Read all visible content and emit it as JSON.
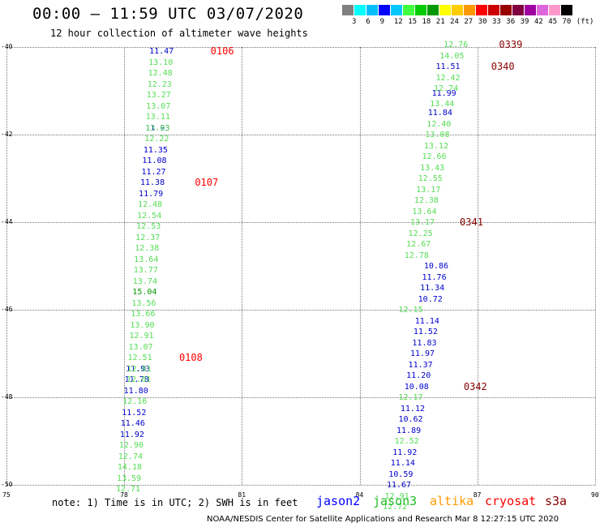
{
  "header": {
    "title": "00:00 — 11:59 UTC 03/07/2020",
    "subtitle": "12 hour collection of altimeter wave heights"
  },
  "legend": {
    "colors": [
      "#808080",
      "#00ffff",
      "#00bfff",
      "#0000ff",
      "#00c8ff",
      "#40ff40",
      "#00cc00",
      "#009900",
      "#ffff00",
      "#ffcc00",
      "#ff9900",
      "#ff0000",
      "#cc0000",
      "#990000",
      "#800040",
      "#a000a0",
      "#dd66dd",
      "#ff99cc",
      "#000000"
    ],
    "labels": [
      "3",
      "6",
      "9",
      "12",
      "15",
      "18",
      "21",
      "24",
      "27",
      "30",
      "33",
      "36",
      "39",
      "42",
      "45",
      "70",
      "(ft)"
    ]
  },
  "chart_data": {
    "type": "scatter",
    "description_free": true,
    "xlim": [
      75,
      90
    ],
    "ylim": [
      -50,
      -40
    ],
    "x_ticks": [
      "75",
      "78",
      "81",
      "84",
      "87",
      "90"
    ],
    "y_ticks": [
      "-40",
      "-42",
      "-44",
      "-46",
      "-48",
      "-50"
    ],
    "series": [
      {
        "name": "jason2",
        "points": [
          {
            "lon": 78.95,
            "lat": -40.1,
            "v": "11.47",
            "c": "#0000cc"
          },
          {
            "lon": 78.85,
            "lat": -41.85,
            "v": "11.93",
            "c": "#0000cc"
          },
          {
            "lon": 78.8,
            "lat": -42.35,
            "v": "11.35",
            "c": "#0000cc"
          },
          {
            "lon": 78.77,
            "lat": -42.6,
            "v": "11.08",
            "c": "#0000cc"
          },
          {
            "lon": 78.75,
            "lat": -42.85,
            "v": "11.27",
            "c": "#0000cc"
          },
          {
            "lon": 78.72,
            "lat": -43.1,
            "v": "11.38",
            "c": "#0000cc"
          },
          {
            "lon": 78.68,
            "lat": -43.35,
            "v": "11.79",
            "c": "#0000cc"
          },
          {
            "lon": 78.35,
            "lat": -47.35,
            "v": "11.93",
            "c": "#0000cc"
          },
          {
            "lon": 78.32,
            "lat": -47.6,
            "v": "11.78",
            "c": "#0000cc"
          },
          {
            "lon": 78.3,
            "lat": -47.85,
            "v": "11.80",
            "c": "#0000cc"
          },
          {
            "lon": 78.25,
            "lat": -48.35,
            "v": "11.52",
            "c": "#0000cc"
          },
          {
            "lon": 78.22,
            "lat": -48.6,
            "v": "11.46",
            "c": "#0000cc"
          },
          {
            "lon": 78.2,
            "lat": -48.85,
            "v": "11.92",
            "c": "#0000cc"
          },
          {
            "lon": 86.25,
            "lat": -40.45,
            "v": "11.51",
            "c": "#0000cc"
          },
          {
            "lon": 86.15,
            "lat": -41.05,
            "v": "11.99",
            "c": "#0000cc"
          },
          {
            "lon": 86.05,
            "lat": -41.5,
            "v": "11.84",
            "c": "#0000cc"
          },
          {
            "lon": 85.95,
            "lat": -45.0,
            "v": "10.86",
            "c": "#0000cc"
          },
          {
            "lon": 85.9,
            "lat": -45.25,
            "v": "11.76",
            "c": "#0000cc"
          },
          {
            "lon": 85.85,
            "lat": -45.5,
            "v": "11.34",
            "c": "#0000cc"
          },
          {
            "lon": 85.8,
            "lat": -45.75,
            "v": "10.72",
            "c": "#0000cc"
          },
          {
            "lon": 85.72,
            "lat": -46.25,
            "v": "11.14",
            "c": "#0000cc"
          },
          {
            "lon": 85.68,
            "lat": -46.5,
            "v": "11.52",
            "c": "#0000cc"
          },
          {
            "lon": 85.65,
            "lat": -46.75,
            "v": "11.83",
            "c": "#0000cc"
          },
          {
            "lon": 85.6,
            "lat": -47.0,
            "v": "11.97",
            "c": "#0000cc"
          },
          {
            "lon": 85.55,
            "lat": -47.25,
            "v": "11.37",
            "c": "#0000cc"
          },
          {
            "lon": 85.5,
            "lat": -47.5,
            "v": "11.20",
            "c": "#0000cc"
          },
          {
            "lon": 85.45,
            "lat": -47.75,
            "v": "10.08",
            "c": "#0000cc"
          },
          {
            "lon": 85.35,
            "lat": -48.25,
            "v": "11.12",
            "c": "#0000cc"
          },
          {
            "lon": 85.3,
            "lat": -48.5,
            "v": "10.62",
            "c": "#0000cc"
          },
          {
            "lon": 85.25,
            "lat": -48.75,
            "v": "11.89",
            "c": "#0000cc"
          },
          {
            "lon": 85.15,
            "lat": -49.25,
            "v": "11.92",
            "c": "#0000cc"
          },
          {
            "lon": 85.1,
            "lat": -49.5,
            "v": "11.14",
            "c": "#0000cc"
          },
          {
            "lon": 85.05,
            "lat": -49.75,
            "v": "10.59",
            "c": "#0000cc"
          },
          {
            "lon": 85.0,
            "lat": -50.0,
            "v": "11.67",
            "c": "#0000cc"
          }
        ]
      },
      {
        "name": "jason3",
        "points": [
          {
            "lon": 78.93,
            "lat": -40.35,
            "v": "13.10",
            "c": "#55dd55"
          },
          {
            "lon": 78.92,
            "lat": -40.6,
            "v": "12.48",
            "c": "#55dd55"
          },
          {
            "lon": 78.9,
            "lat": -40.85,
            "v": "12.23",
            "c": "#55dd55"
          },
          {
            "lon": 78.88,
            "lat": -41.1,
            "v": "13.27",
            "c": "#55dd55"
          },
          {
            "lon": 78.87,
            "lat": -41.35,
            "v": "13.07",
            "c": "#55dd55"
          },
          {
            "lon": 78.86,
            "lat": -41.6,
            "v": "13.11",
            "c": "#55dd55"
          },
          {
            "lon": 78.85,
            "lat": -41.85,
            "v": "13.03",
            "c": "#55dd55"
          },
          {
            "lon": 78.83,
            "lat": -42.1,
            "v": "12.22",
            "c": "#55dd55"
          },
          {
            "lon": 78.66,
            "lat": -43.6,
            "v": "12.48",
            "c": "#55dd55"
          },
          {
            "lon": 78.64,
            "lat": -43.85,
            "v": "12.54",
            "c": "#55dd55"
          },
          {
            "lon": 78.62,
            "lat": -44.1,
            "v": "12.53",
            "c": "#55dd55"
          },
          {
            "lon": 78.6,
            "lat": -44.35,
            "v": "12.37",
            "c": "#55dd55"
          },
          {
            "lon": 78.58,
            "lat": -44.6,
            "v": "12.38",
            "c": "#55dd55"
          },
          {
            "lon": 78.56,
            "lat": -44.85,
            "v": "13.64",
            "c": "#55dd55"
          },
          {
            "lon": 78.55,
            "lat": -45.1,
            "v": "13.77",
            "c": "#55dd55"
          },
          {
            "lon": 78.53,
            "lat": -45.35,
            "v": "13.74",
            "c": "#55dd55"
          },
          {
            "lon": 78.52,
            "lat": -45.6,
            "v": "15.04",
            "c": "#009900"
          },
          {
            "lon": 78.5,
            "lat": -45.85,
            "v": "13.56",
            "c": "#55dd55"
          },
          {
            "lon": 78.48,
            "lat": -46.1,
            "v": "13.66",
            "c": "#55dd55"
          },
          {
            "lon": 78.46,
            "lat": -46.35,
            "v": "13.90",
            "c": "#55dd55"
          },
          {
            "lon": 78.44,
            "lat": -46.6,
            "v": "12.91",
            "c": "#55dd55"
          },
          {
            "lon": 78.42,
            "lat": -46.85,
            "v": "13.07",
            "c": "#55dd55"
          },
          {
            "lon": 78.4,
            "lat": -47.1,
            "v": "12.51",
            "c": "#55dd55"
          },
          {
            "lon": 78.38,
            "lat": -47.35,
            "v": "12.01",
            "c": "#55dd55"
          },
          {
            "lon": 78.37,
            "lat": -47.6,
            "v": "12.01",
            "c": "#55dd55"
          },
          {
            "lon": 78.27,
            "lat": -48.1,
            "v": "12.16",
            "c": "#55dd55"
          },
          {
            "lon": 78.18,
            "lat": -49.1,
            "v": "12.90",
            "c": "#55dd55"
          },
          {
            "lon": 78.16,
            "lat": -49.35,
            "v": "12.74",
            "c": "#55dd55"
          },
          {
            "lon": 78.14,
            "lat": -49.6,
            "v": "14.18",
            "c": "#55dd55"
          },
          {
            "lon": 78.12,
            "lat": -49.85,
            "v": "13.59",
            "c": "#55dd55"
          },
          {
            "lon": 78.1,
            "lat": -50.1,
            "v": "12.71",
            "c": "#55dd55"
          },
          {
            "lon": 86.45,
            "lat": -39.95,
            "v": "12.76",
            "c": "#55dd55"
          },
          {
            "lon": 86.35,
            "lat": -40.2,
            "v": "14.05",
            "c": "#55dd55"
          },
          {
            "lon": 86.25,
            "lat": -40.7,
            "v": "12.42",
            "c": "#55dd55"
          },
          {
            "lon": 86.2,
            "lat": -40.95,
            "v": "12.74",
            "c": "#55dd55"
          },
          {
            "lon": 86.1,
            "lat": -41.3,
            "v": "13.44",
            "c": "#55dd55"
          },
          {
            "lon": 86.02,
            "lat": -41.75,
            "v": "12.40",
            "c": "#55dd55"
          },
          {
            "lon": 85.98,
            "lat": -42.0,
            "v": "13.08",
            "c": "#55dd55"
          },
          {
            "lon": 85.95,
            "lat": -42.25,
            "v": "13.12",
            "c": "#55dd55"
          },
          {
            "lon": 85.9,
            "lat": -42.5,
            "v": "12.66",
            "c": "#55dd55"
          },
          {
            "lon": 85.85,
            "lat": -42.75,
            "v": "13.43",
            "c": "#55dd55"
          },
          {
            "lon": 85.8,
            "lat": -43.0,
            "v": "12.55",
            "c": "#55dd55"
          },
          {
            "lon": 85.75,
            "lat": -43.25,
            "v": "13.17",
            "c": "#55dd55"
          },
          {
            "lon": 85.7,
            "lat": -43.5,
            "v": "12.38",
            "c": "#55dd55"
          },
          {
            "lon": 85.65,
            "lat": -43.75,
            "v": "13.64",
            "c": "#55dd55"
          },
          {
            "lon": 85.6,
            "lat": -44.0,
            "v": "13.17",
            "c": "#55dd55"
          },
          {
            "lon": 85.55,
            "lat": -44.25,
            "v": "12.25",
            "c": "#55dd55"
          },
          {
            "lon": 85.5,
            "lat": -44.5,
            "v": "12.67",
            "c": "#55dd55"
          },
          {
            "lon": 85.45,
            "lat": -44.75,
            "v": "12.78",
            "c": "#55dd55"
          },
          {
            "lon": 85.3,
            "lat": -46.0,
            "v": "12.15",
            "c": "#55dd55"
          },
          {
            "lon": 85.3,
            "lat": -48.0,
            "v": "12.17",
            "c": "#55dd55"
          },
          {
            "lon": 85.2,
            "lat": -49.0,
            "v": "12.52",
            "c": "#55dd55"
          },
          {
            "lon": 84.95,
            "lat": -50.25,
            "v": "12.91",
            "c": "#55dd55"
          },
          {
            "lon": 84.9,
            "lat": -50.5,
            "v": "12.72",
            "c": "#55dd55"
          }
        ]
      }
    ],
    "time_labels": [
      {
        "lon": 80.2,
        "lat": -40.1,
        "t": "0106",
        "c": "#ff0000"
      },
      {
        "lon": 79.8,
        "lat": -43.1,
        "t": "0107",
        "c": "#ff0000"
      },
      {
        "lon": 79.4,
        "lat": -47.1,
        "t": "0108",
        "c": "#ff0000"
      },
      {
        "lon": 87.55,
        "lat": -39.95,
        "t": "0339",
        "c": "#880000"
      },
      {
        "lon": 87.35,
        "lat": -40.45,
        "t": "0340",
        "c": "#880000"
      },
      {
        "lon": 86.55,
        "lat": -44.0,
        "t": "0341",
        "c": "#880000"
      },
      {
        "lon": 86.65,
        "lat": -47.75,
        "t": "0342",
        "c": "#880000"
      }
    ]
  },
  "footer": {
    "note": "note: 1) Time is in UTC; 2) SWH is in feet",
    "satellites": [
      {
        "name": "jason2",
        "color": "#0000ff"
      },
      {
        "name": "jason3",
        "color": "#22bb22"
      },
      {
        "name": "altika",
        "color": "#ff9900"
      },
      {
        "name": "cryosat",
        "color": "#ff0000"
      },
      {
        "name": "s3a",
        "color": "#880000"
      }
    ],
    "credit": "NOAA/NESDIS Center for Satellite Applications and Research    Mar  8 12:27:15 UTC 2020"
  }
}
